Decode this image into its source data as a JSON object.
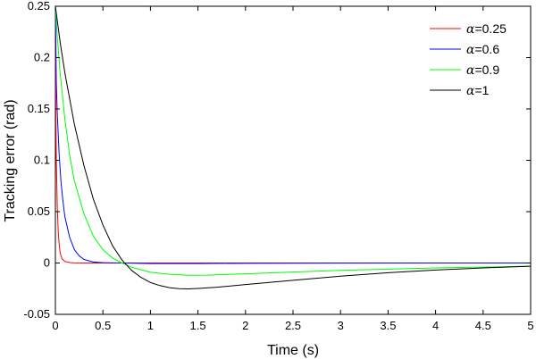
{
  "chart_data": {
    "type": "line",
    "xlabel": "Time (s)",
    "ylabel": "Tracking error (rad)",
    "xlim": [
      0,
      5
    ],
    "ylim": [
      -0.05,
      0.25
    ],
    "xticks": [
      0,
      0.5,
      1,
      1.5,
      2,
      2.5,
      3,
      3.5,
      4,
      4.5,
      5
    ],
    "xtick_labels": [
      "0",
      "0.5",
      "1",
      "1.5",
      "2",
      "2.5",
      "3",
      "3.5",
      "4",
      "4.5",
      "5"
    ],
    "yticks": [
      -0.05,
      0,
      0.05,
      0.1,
      0.15,
      0.2,
      0.25
    ],
    "ytick_labels": [
      "-0.05",
      "0",
      "0.05",
      "0.1",
      "0.15",
      "0.2",
      "0.25"
    ],
    "grid": false,
    "legend_position": "top-right",
    "series": [
      {
        "name": "α=0.25",
        "symbol": "α",
        "value_label": "=0.25",
        "color": "#ff0000",
        "x": [
          0,
          0.005,
          0.01,
          0.02,
          0.03,
          0.04,
          0.05,
          0.07,
          0.1,
          0.15,
          0.2,
          0.3,
          0.5,
          1,
          2,
          3,
          4,
          5
        ],
        "y": [
          0.25,
          0.14,
          0.1,
          0.055,
          0.03,
          0.018,
          0.01,
          0.004,
          0.0015,
          0.0004,
          0.0001,
          0,
          0,
          0,
          0,
          0,
          0,
          0
        ]
      },
      {
        "name": "α=0.6",
        "symbol": "α",
        "value_label": "=0.6",
        "color": "#0000ff",
        "x": [
          0,
          0.01,
          0.02,
          0.04,
          0.06,
          0.08,
          0.1,
          0.15,
          0.2,
          0.25,
          0.3,
          0.4,
          0.5,
          0.7,
          1,
          1.5,
          2,
          3,
          4,
          5
        ],
        "y": [
          0.25,
          0.175,
          0.145,
          0.105,
          0.078,
          0.06,
          0.045,
          0.025,
          0.013,
          0.007,
          0.0035,
          0.001,
          0.0003,
          0,
          -0.0005,
          -0.0005,
          -0.0003,
          -0.0001,
          0,
          0
        ]
      },
      {
        "name": "α=0.9",
        "symbol": "α",
        "value_label": "=0.9",
        "color": "#00ff00",
        "x": [
          0,
          0.02,
          0.05,
          0.1,
          0.15,
          0.2,
          0.3,
          0.4,
          0.5,
          0.6,
          0.7,
          0.8,
          1,
          1.2,
          1.4,
          1.6,
          2,
          2.5,
          3,
          3.5,
          4,
          4.5,
          5
        ],
        "y": [
          0.25,
          0.22,
          0.185,
          0.14,
          0.105,
          0.08,
          0.048,
          0.026,
          0.013,
          0.005,
          0,
          -0.004,
          -0.009,
          -0.011,
          -0.012,
          -0.0118,
          -0.0105,
          -0.0088,
          -0.0072,
          -0.006,
          -0.0048,
          -0.004,
          -0.003
        ]
      },
      {
        "name": "α=1",
        "symbol": "α",
        "value_label": "=1",
        "color": "#000000",
        "x": [
          0,
          0.05,
          0.1,
          0.2,
          0.3,
          0.4,
          0.5,
          0.6,
          0.7,
          0.8,
          0.9,
          1,
          1.1,
          1.2,
          1.3,
          1.4,
          1.5,
          1.7,
          2,
          2.5,
          3,
          3.5,
          4,
          4.5,
          5
        ],
        "y": [
          0.25,
          0.215,
          0.185,
          0.135,
          0.095,
          0.062,
          0.037,
          0.017,
          0.003,
          -0.007,
          -0.014,
          -0.019,
          -0.022,
          -0.024,
          -0.025,
          -0.0252,
          -0.0248,
          -0.0236,
          -0.021,
          -0.0168,
          -0.0128,
          -0.0095,
          -0.0068,
          -0.0048,
          -0.0032
        ]
      }
    ]
  }
}
